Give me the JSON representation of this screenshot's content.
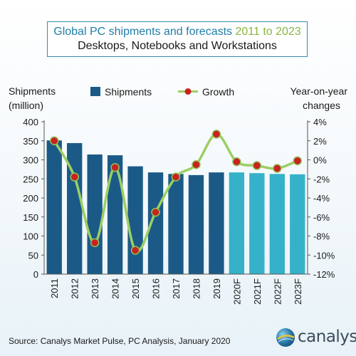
{
  "title": {
    "main": "Global PC shipments and forecasts",
    "range": "2011 to 2023",
    "subtitle": "Desktops, Notebooks and Workstations"
  },
  "source": "Source: Canalys Market Pulse, PC Analysis, January 2020",
  "brand": {
    "name": "canalys",
    "logo_icon": "globe-logo-icon"
  },
  "chart_data": {
    "type": "bar",
    "categories": [
      "2011",
      "2012",
      "2013",
      "2014",
      "2015",
      "2016",
      "2017",
      "2018",
      "2019",
      "2020F",
      "2021F",
      "2022F",
      "2023F"
    ],
    "series": [
      {
        "name": "Shipments",
        "type": "bar",
        "axis": "left",
        "values": [
          351,
          344,
          314,
          312,
          283,
          267,
          263,
          260,
          267,
          267,
          265,
          263,
          262
        ],
        "actual_color": "#1b5a87",
        "forecast_color": "#35b2c9"
      },
      {
        "name": "Growth",
        "type": "line",
        "axis": "right",
        "values": [
          2.0,
          -1.8,
          -8.7,
          -0.8,
          -9.5,
          -5.5,
          -1.8,
          -0.5,
          2.7,
          -0.2,
          -0.6,
          -0.9,
          -0.1
        ],
        "line_color": "#9ccf63",
        "marker_color": "#c9221f"
      }
    ],
    "left_axis": {
      "label_line1": "Shipments",
      "label_line2": "(million)",
      "ticks": [
        "0",
        "50",
        "100",
        "150",
        "200",
        "250",
        "300",
        "350",
        "400"
      ],
      "ylim": [
        0,
        400
      ]
    },
    "right_axis": {
      "label_line1": "Year-on-year",
      "label_line2": "changes",
      "ticks": [
        "-12%",
        "-10%",
        "-8%",
        "-6%",
        "-4%",
        "-2%",
        "0%",
        "2%",
        "4%"
      ],
      "ylim": [
        -12,
        4
      ]
    },
    "legend_position": "top",
    "grid": false
  }
}
